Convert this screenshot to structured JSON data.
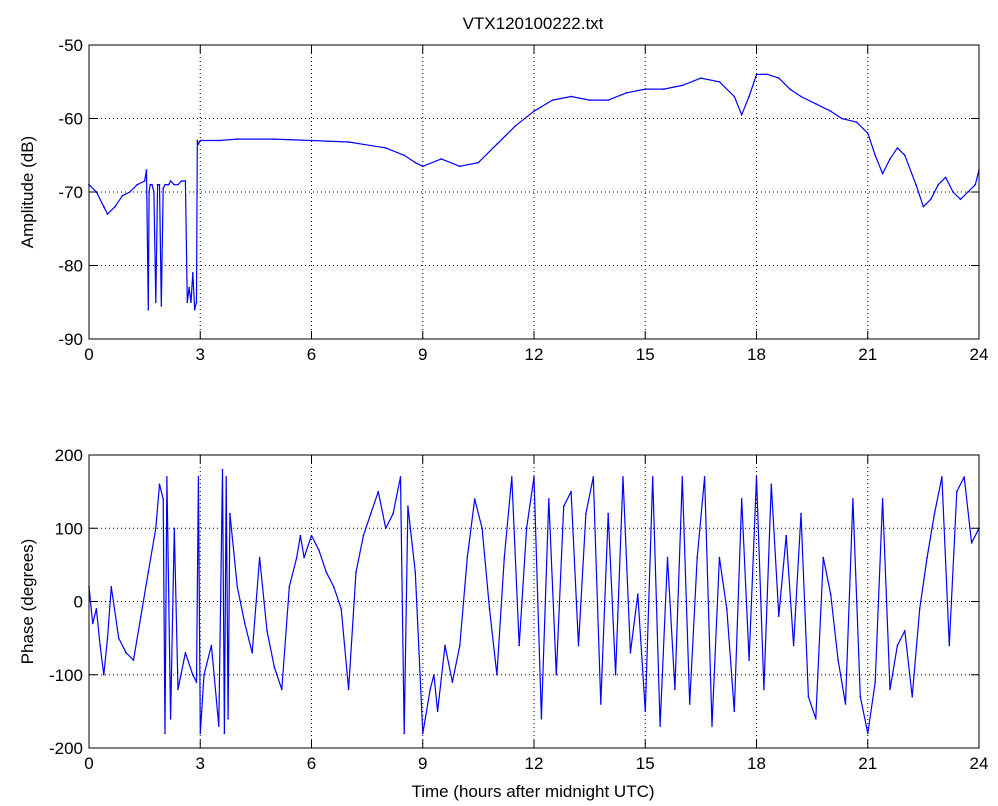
{
  "figure": {
    "title": "VTX120100222.txt"
  },
  "colors": {
    "series": "#0000ff",
    "axes": "#000000",
    "grid": "#000000",
    "background": "#ffffff"
  },
  "chart_data": [
    {
      "type": "line",
      "title": "VTX120100222.txt",
      "xlabel": "",
      "ylabel": "Amplitude (dB)",
      "xlim": [
        0,
        24
      ],
      "ylim": [
        -90,
        -50
      ],
      "xticks": [
        0,
        3,
        6,
        9,
        12,
        15,
        18,
        21,
        24
      ],
      "yticks": [
        -90,
        -80,
        -70,
        -60,
        -50
      ],
      "grid": true,
      "series": [
        {
          "x": [
            0,
            0.2,
            0.4,
            0.5,
            0.7,
            0.9,
            1.1,
            1.3,
            1.5,
            1.55,
            1.6,
            1.62,
            1.65,
            1.7,
            1.75,
            1.8,
            1.85,
            1.9,
            1.95,
            2.0,
            2.05,
            2.1,
            2.15,
            2.2,
            2.3,
            2.4,
            2.5,
            2.6,
            2.65,
            2.7,
            2.75,
            2.8,
            2.85,
            2.9,
            2.92,
            2.95,
            3.0,
            3.5,
            4.0,
            5.0,
            6.0,
            7.0,
            8.0,
            8.5,
            8.8,
            9.0,
            9.5,
            10.0,
            10.5,
            11.0,
            11.5,
            12.0,
            12.5,
            13.0,
            13.5,
            14.0,
            14.5,
            15.0,
            15.5,
            16.0,
            16.5,
            17.0,
            17.4,
            17.6,
            17.8,
            18.0,
            18.3,
            18.6,
            18.9,
            19.2,
            19.6,
            20.0,
            20.3,
            20.7,
            21.0,
            21.2,
            21.4,
            21.6,
            21.8,
            22.0,
            22.3,
            22.5,
            22.7,
            22.9,
            23.1,
            23.3,
            23.5,
            23.7,
            23.9,
            24.0
          ],
          "y": [
            -69,
            -70,
            -72,
            -73,
            -72,
            -70.5,
            -70,
            -69,
            -68.5,
            -67,
            -86,
            -70,
            -69,
            -69,
            -70,
            -85,
            -69,
            -69,
            -85.5,
            -69.5,
            -69,
            -69,
            -69,
            -68.5,
            -69,
            -69,
            -68.5,
            -68.5,
            -85,
            -83,
            -85,
            -81,
            -86,
            -85,
            -63,
            -63.5,
            -63,
            -63,
            -62.8,
            -62.8,
            -63,
            -63.2,
            -64,
            -65,
            -66,
            -66.5,
            -65.5,
            -66.5,
            -66,
            -63.5,
            -61,
            -59,
            -57.5,
            -57,
            -57.5,
            -57.5,
            -56.5,
            -56,
            -56,
            -55.5,
            -54.5,
            -55,
            -57,
            -59.5,
            -57,
            -54,
            -54,
            -54.5,
            -56,
            -57,
            -58,
            -59,
            -60,
            -60.5,
            -62,
            -65,
            -67.5,
            -65.5,
            -64,
            -65,
            -69,
            -72,
            -71,
            -69,
            -68,
            -70,
            -71,
            -70,
            -69,
            -67
          ]
        }
      ]
    },
    {
      "type": "line",
      "title": "",
      "xlabel": "Time (hours after midnight UTC)",
      "ylabel": "Phase (degrees)",
      "xlim": [
        0,
        24
      ],
      "ylim": [
        -200,
        200
      ],
      "xticks": [
        0,
        3,
        6,
        9,
        12,
        15,
        18,
        21,
        24
      ],
      "yticks": [
        -200,
        -100,
        0,
        100,
        200
      ],
      "grid": true,
      "series": [
        {
          "x": [
            0,
            0.1,
            0.2,
            0.3,
            0.4,
            0.5,
            0.6,
            0.8,
            1.0,
            1.2,
            1.4,
            1.6,
            1.8,
            1.9,
            2.0,
            2.05,
            2.1,
            2.2,
            2.3,
            2.4,
            2.6,
            2.8,
            2.9,
            2.95,
            3.0,
            3.1,
            3.3,
            3.5,
            3.6,
            3.65,
            3.7,
            3.75,
            3.8,
            4.0,
            4.2,
            4.4,
            4.6,
            4.8,
            5.0,
            5.2,
            5.4,
            5.6,
            5.7,
            5.8,
            6.0,
            6.2,
            6.4,
            6.6,
            6.8,
            7.0,
            7.2,
            7.4,
            7.6,
            7.8,
            8.0,
            8.2,
            8.4,
            8.5,
            8.6,
            8.8,
            9.0,
            9.2,
            9.3,
            9.4,
            9.6,
            9.8,
            10.0,
            10.2,
            10.4,
            10.6,
            10.8,
            11.0,
            11.2,
            11.4,
            11.6,
            11.8,
            12.0,
            12.2,
            12.4,
            12.6,
            12.8,
            13.0,
            13.2,
            13.4,
            13.6,
            13.8,
            14.0,
            14.2,
            14.4,
            14.6,
            14.8,
            15.0,
            15.2,
            15.4,
            15.6,
            15.8,
            16.0,
            16.2,
            16.4,
            16.6,
            16.8,
            17.0,
            17.2,
            17.4,
            17.6,
            17.8,
            18.0,
            18.2,
            18.4,
            18.6,
            18.8,
            19.0,
            19.2,
            19.4,
            19.6,
            19.8,
            20.0,
            20.2,
            20.4,
            20.6,
            20.8,
            21.0,
            21.2,
            21.4,
            21.6,
            21.8,
            22.0,
            22.2,
            22.4,
            22.6,
            22.8,
            23.0,
            23.2,
            23.4,
            23.6,
            23.8,
            24.0
          ],
          "y": [
            20,
            -30,
            -10,
            -60,
            -100,
            -50,
            20,
            -50,
            -70,
            -80,
            -20,
            40,
            100,
            160,
            140,
            -180,
            170,
            -160,
            100,
            -120,
            -70,
            -100,
            -110,
            170,
            -180,
            -100,
            -60,
            -170,
            180,
            -180,
            170,
            -160,
            120,
            20,
            -30,
            -70,
            60,
            -40,
            -90,
            -120,
            20,
            60,
            90,
            60,
            90,
            70,
            40,
            20,
            -10,
            -120,
            40,
            90,
            120,
            150,
            100,
            120,
            170,
            -180,
            130,
            40,
            -180,
            -120,
            -100,
            -150,
            -60,
            -110,
            -60,
            60,
            140,
            100,
            -10,
            -100,
            60,
            170,
            -60,
            100,
            170,
            -160,
            140,
            -100,
            130,
            150,
            -60,
            120,
            170,
            -140,
            120,
            -100,
            170,
            -70,
            10,
            -150,
            170,
            -170,
            60,
            -120,
            170,
            -140,
            60,
            170,
            -170,
            60,
            -10,
            -150,
            140,
            -80,
            170,
            -120,
            160,
            -20,
            90,
            -60,
            120,
            -130,
            -160,
            60,
            10,
            -80,
            -140,
            140,
            -130,
            -180,
            -110,
            140,
            -120,
            -60,
            -40,
            -130,
            -10,
            60,
            120,
            170,
            -60,
            150,
            170,
            80,
            100
          ]
        }
      ]
    }
  ]
}
